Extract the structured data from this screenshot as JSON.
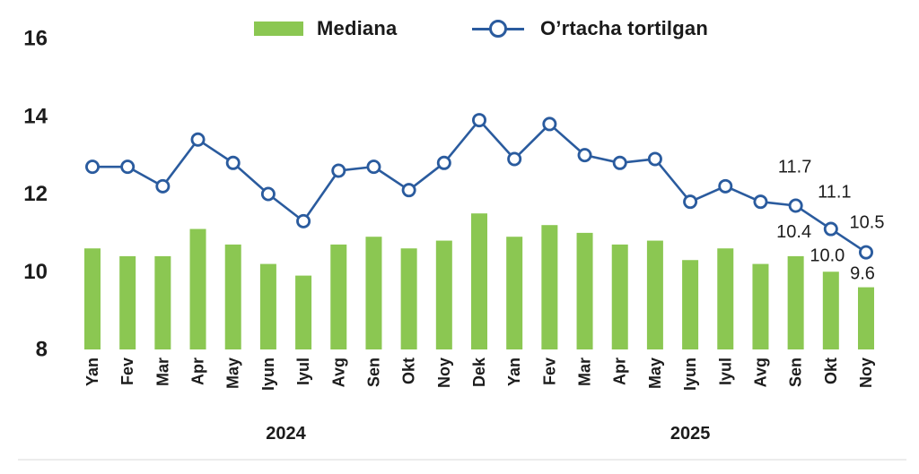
{
  "chart_data": {
    "type": "combo-bar-line",
    "title": "",
    "grid": false,
    "legend_position": "top",
    "yticks": [
      8,
      10,
      12,
      14,
      16
    ],
    "ylim": [
      8,
      16
    ],
    "categories": [
      "Yan",
      "Fev",
      "Mar",
      "Apr",
      "May",
      "Iyun",
      "Iyul",
      "Avg",
      "Sen",
      "Okt",
      "Noy",
      "Dek",
      "Yan",
      "Fev",
      "Mar",
      "Apr",
      "May",
      "Iyun",
      "Iyul",
      "Avg",
      "Sen",
      "Okt",
      "Noy"
    ],
    "year_groups": [
      {
        "label": "2024",
        "from_index": 0,
        "to_index": 11
      },
      {
        "label": "2025",
        "from_index": 12,
        "to_index": 22
      }
    ],
    "series": [
      {
        "name": "Mediana",
        "type": "bar",
        "color": "#8bc752",
        "values": [
          10.6,
          10.4,
          10.4,
          11.1,
          10.7,
          10.2,
          9.9,
          10.7,
          10.9,
          10.6,
          10.8,
          11.5,
          10.9,
          11.2,
          11.0,
          10.7,
          10.8,
          10.3,
          10.6,
          10.2,
          10.4,
          10.0,
          9.6
        ],
        "value_labels": [
          {
            "index": 20,
            "label": "10.4",
            "dx": -2,
            "dy": -27
          },
          {
            "index": 21,
            "label": "10.0",
            "dx": -4,
            "dy": -18
          },
          {
            "index": 22,
            "label": "9.6",
            "dx": -4,
            "dy": -15
          }
        ]
      },
      {
        "name": "O’rtacha tortilgan",
        "type": "line",
        "color": "#2a5b9e",
        "marker": "open-circle",
        "values": [
          12.7,
          12.7,
          12.2,
          13.4,
          12.8,
          12.0,
          11.3,
          12.6,
          12.7,
          12.1,
          12.8,
          13.9,
          12.9,
          13.8,
          13.0,
          12.8,
          12.9,
          11.8,
          12.2,
          11.8,
          11.7,
          11.1,
          10.5
        ],
        "value_labels": [
          {
            "index": 20,
            "label": "11.7",
            "dx": -1,
            "dy": -43
          },
          {
            "index": 21,
            "label": "11.1",
            "dx": 4,
            "dy": -41
          },
          {
            "index": 22,
            "label": "10.5",
            "dx": 1,
            "dy": -33
          }
        ]
      }
    ]
  }
}
